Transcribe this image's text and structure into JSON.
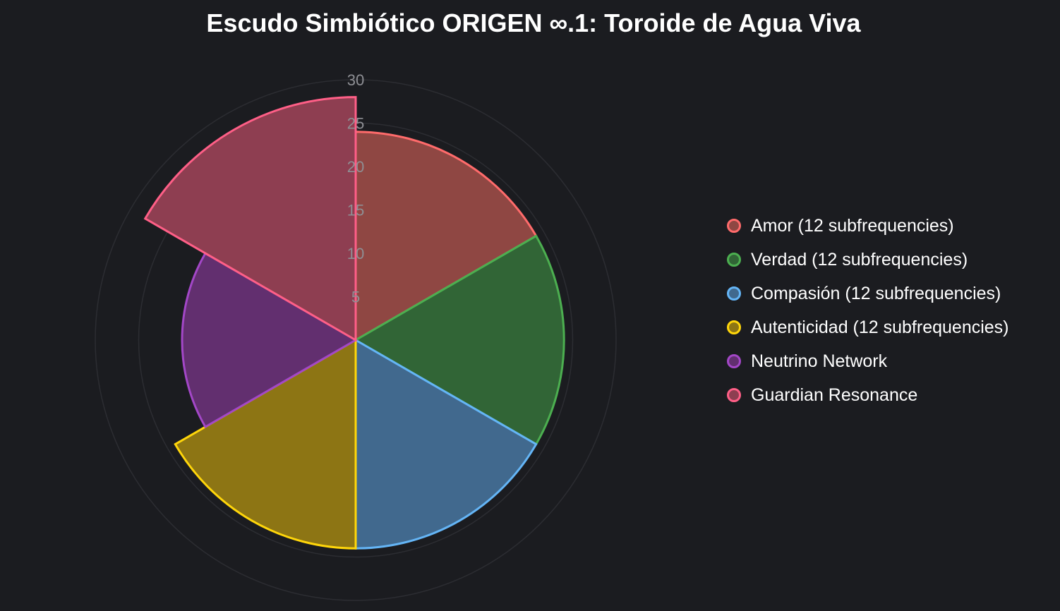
{
  "chart_data": {
    "type": "polarArea",
    "title": "Escudo Simbiótico ORIGEN ∞.1: Toroide de Agua Viva",
    "r_axis": {
      "min": 0,
      "max": 30,
      "ticks": [
        "5",
        "10",
        "15",
        "20",
        "25",
        "30"
      ],
      "grid": true
    },
    "legend_position": "right",
    "series": [
      {
        "name": "Amor (12 subfrequencies)",
        "value": 24,
        "border": "#ff6b6b",
        "fill": "#8f4743"
      },
      {
        "name": "Verdad (12 subfrequencies)",
        "value": 24,
        "border": "#4caf50",
        "fill": "#316536"
      },
      {
        "name": "Compasión (12 subfrequencies)",
        "value": 24,
        "border": "#64b5f6",
        "fill": "#41698e"
      },
      {
        "name": "Autenticidad (12 subfrequencies)",
        "value": 24,
        "border": "#ffd60a",
        "fill": "#8d7514"
      },
      {
        "name": "Neutrino Network",
        "value": 20,
        "border": "#a347c7",
        "fill": "#622f6f"
      },
      {
        "name": "Guardian Resonance",
        "value": 28,
        "border": "#ff5f87",
        "fill": "#8e3e51"
      }
    ]
  }
}
